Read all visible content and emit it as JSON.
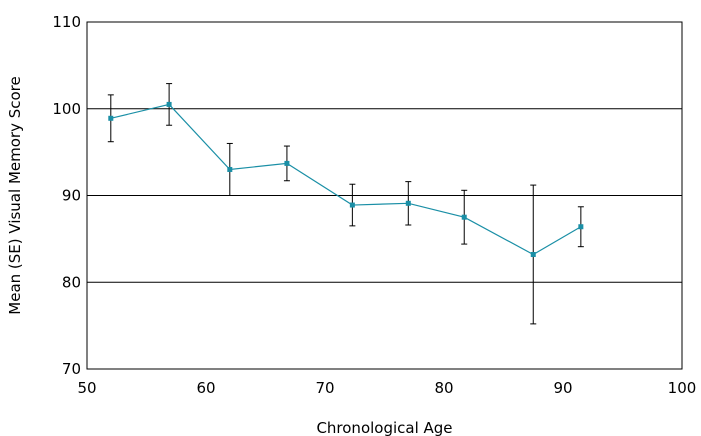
{
  "chart_data": {
    "type": "line",
    "title": "",
    "xlabel": "Chronological Age",
    "ylabel": "Mean (SE) Visual Memory Score",
    "xlim": [
      50,
      100
    ],
    "ylim": [
      70,
      110
    ],
    "xticks": [
      50,
      60,
      70,
      80,
      90,
      100
    ],
    "yticks": [
      70,
      80,
      90,
      100,
      110
    ],
    "grid": "horizontal",
    "legend": "none",
    "series": [
      {
        "color": "#1a8fa6",
        "points": [
          {
            "x": 52.0,
            "y": 98.9,
            "se": 2.7
          },
          {
            "x": 56.9,
            "y": 100.5,
            "se": 2.4
          },
          {
            "x": 62.0,
            "y": 93.0,
            "se": 3.0
          },
          {
            "x": 66.8,
            "y": 93.7,
            "se": 2.0
          },
          {
            "x": 72.3,
            "y": 88.9,
            "se": 2.4
          },
          {
            "x": 77.0,
            "y": 89.1,
            "se": 2.5
          },
          {
            "x": 81.7,
            "y": 87.5,
            "se": 3.1
          },
          {
            "x": 87.5,
            "y": 83.2,
            "se": 8.0
          },
          {
            "x": 91.5,
            "y": 86.4,
            "se": 2.3
          }
        ]
      }
    ]
  }
}
